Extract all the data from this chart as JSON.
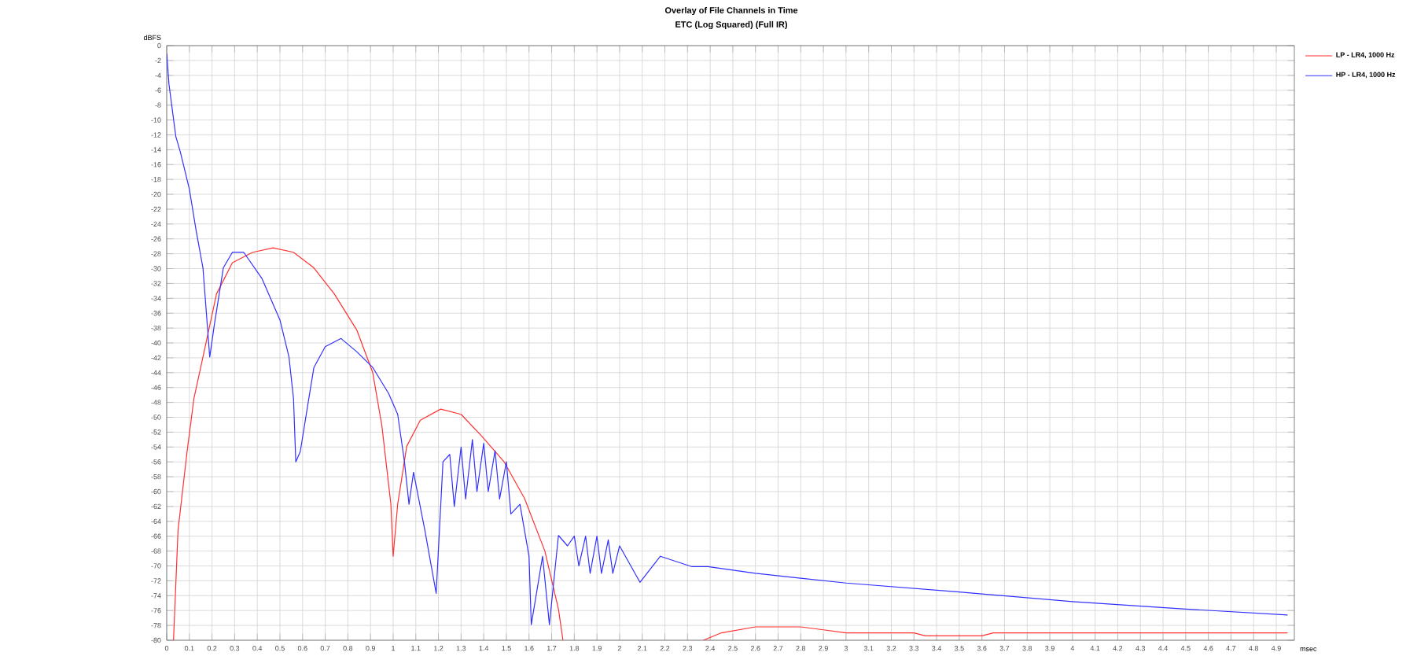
{
  "chart_data": {
    "type": "line",
    "title": "Overlay of File Channels in Time",
    "subtitle": "ETC (Log Squared) (Full IR)",
    "xlabel": "msec",
    "ylabel": "dBFS",
    "xlim": [
      0,
      4.98
    ],
    "ylim": [
      -80,
      0
    ],
    "xticks": [
      0,
      0.1,
      0.2,
      0.3,
      0.4,
      0.5,
      0.6,
      0.7,
      0.8,
      0.9,
      1,
      1.1,
      1.2,
      1.3,
      1.4,
      1.5,
      1.6,
      1.7,
      1.8,
      1.9,
      2,
      2.1,
      2.2,
      2.3,
      2.4,
      2.5,
      2.6,
      2.7,
      2.8,
      2.9,
      3,
      3.1,
      3.2,
      3.3,
      3.4,
      3.5,
      3.6,
      3.7,
      3.8,
      3.9,
      4,
      4.1,
      4.2,
      4.3,
      4.4,
      4.5,
      4.6,
      4.7,
      4.8,
      4.9
    ],
    "yticks": [
      0,
      -2,
      -4,
      -6,
      -8,
      -10,
      -12,
      -14,
      -16,
      -18,
      -20,
      -22,
      -24,
      -26,
      -28,
      -30,
      -32,
      -34,
      -36,
      -38,
      -40,
      -42,
      -44,
      -46,
      -48,
      -50,
      -52,
      -54,
      -56,
      -58,
      -60,
      -62,
      -64,
      -66,
      -68,
      -70,
      -72,
      -74,
      -76,
      -78,
      -80
    ],
    "grid": true,
    "legend": "top right",
    "marker": "none",
    "line_style": "solid",
    "series": [
      {
        "name": "LP - LR4, 1000 Hz",
        "color": "#ff3030",
        "x": [
          0.03,
          0.05,
          0.09,
          0.12,
          0.17,
          0.22,
          0.29,
          0.38,
          0.47,
          0.56,
          0.65,
          0.74,
          0.84,
          0.91,
          0.95,
          0.99,
          1.0,
          1.02,
          1.06,
          1.12,
          1.21,
          1.3,
          1.39,
          1.49,
          1.58,
          1.67,
          1.73,
          1.75,
          2.0,
          2.37,
          2.45,
          2.6,
          2.8,
          2.9,
          3.0,
          3.3,
          3.35,
          3.6,
          3.65,
          4.95
        ],
        "values": [
          -80,
          -65.2,
          -54.6,
          -47.5,
          -40.5,
          -33.4,
          -29.2,
          -27.8,
          -27.2,
          -27.8,
          -29.9,
          -33.4,
          -38.3,
          -44,
          -51.1,
          -61.7,
          -68.7,
          -61.7,
          -53.9,
          -50.4,
          -48.9,
          -49.6,
          -52.5,
          -56,
          -60.9,
          -68,
          -75.8,
          -80,
          null,
          -80,
          -79,
          -78.2,
          -78.2,
          -78.6,
          -79,
          -79,
          -79.4,
          -79.4,
          -79,
          -79
        ]
      },
      {
        "name": "HP - LR4, 1000 Hz",
        "color": "#3030ff",
        "x": [
          0,
          0.01,
          0.04,
          0.06,
          0.1,
          0.13,
          0.16,
          0.19,
          0.21,
          0.25,
          0.29,
          0.34,
          0.42,
          0.5,
          0.54,
          0.56,
          0.57,
          0.59,
          0.62,
          0.65,
          0.7,
          0.77,
          0.84,
          0.91,
          0.98,
          1.02,
          1.05,
          1.07,
          1.09,
          1.14,
          1.19,
          1.22,
          1.25,
          1.27,
          1.3,
          1.32,
          1.35,
          1.37,
          1.4,
          1.42,
          1.45,
          1.47,
          1.5,
          1.52,
          1.56,
          1.6,
          1.61,
          1.66,
          1.69,
          1.73,
          1.77,
          1.8,
          1.82,
          1.85,
          1.87,
          1.9,
          1.92,
          1.95,
          1.97,
          2.0,
          2.09,
          2.18,
          2.32,
          2.39,
          2.6,
          3.0,
          3.5,
          4.0,
          4.5,
          4.95
        ],
        "values": [
          -1,
          -5.2,
          -12.2,
          -14.3,
          -19.3,
          -24.9,
          -29.9,
          -41.9,
          -37.6,
          -29.9,
          -27.8,
          -27.8,
          -31.3,
          -36.9,
          -41.9,
          -47.5,
          -56,
          -54.6,
          -48.9,
          -43.3,
          -40.5,
          -39.4,
          -41.2,
          -43.3,
          -46.8,
          -49.6,
          -56,
          -61.7,
          -57.4,
          -65.2,
          -73.7,
          -56,
          -55,
          -62,
          -54,
          -61,
          -53,
          -60,
          -53.5,
          -60,
          -54.5,
          -61,
          -56,
          -63,
          -61.7,
          -68.7,
          -77.9,
          -68.7,
          -77.9,
          -65.9,
          -67.3,
          -66,
          -70,
          -66,
          -71,
          -66,
          -71,
          -66.5,
          -71,
          -67.3,
          -72.2,
          -68.7,
          -70.1,
          -70.1,
          -71,
          -72.3,
          -73.5,
          -74.8,
          -75.8,
          -76.6
        ]
      }
    ]
  }
}
